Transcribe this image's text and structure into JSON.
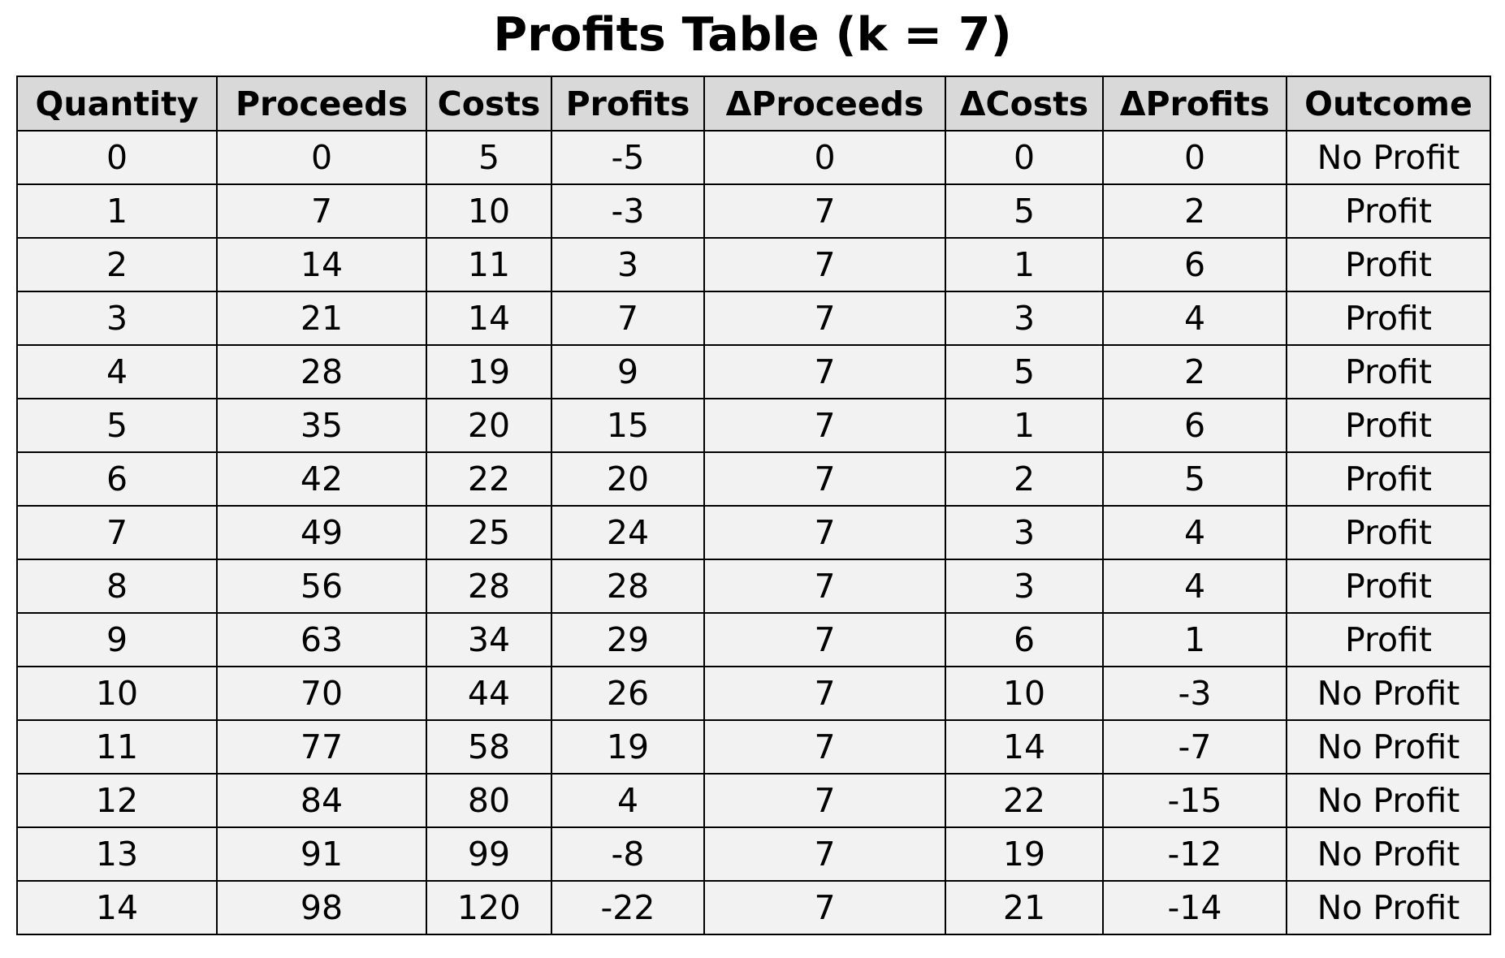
{
  "chart_data": {
    "type": "table",
    "title": "Profits Table (k = 7)",
    "columns": [
      "Quantity",
      "Proceeds",
      "Costs",
      "Profits",
      "ΔProceeds",
      "ΔCosts",
      "ΔProfits",
      "Outcome"
    ],
    "rows": [
      [
        "0",
        "0",
        "5",
        "-5",
        "0",
        "0",
        "0",
        "No Profit"
      ],
      [
        "1",
        "7",
        "10",
        "-3",
        "7",
        "5",
        "2",
        "Profit"
      ],
      [
        "2",
        "14",
        "11",
        "3",
        "7",
        "1",
        "6",
        "Profit"
      ],
      [
        "3",
        "21",
        "14",
        "7",
        "7",
        "3",
        "4",
        "Profit"
      ],
      [
        "4",
        "28",
        "19",
        "9",
        "7",
        "5",
        "2",
        "Profit"
      ],
      [
        "5",
        "35",
        "20",
        "15",
        "7",
        "1",
        "6",
        "Profit"
      ],
      [
        "6",
        "42",
        "22",
        "20",
        "7",
        "2",
        "5",
        "Profit"
      ],
      [
        "7",
        "49",
        "25",
        "24",
        "7",
        "3",
        "4",
        "Profit"
      ],
      [
        "8",
        "56",
        "28",
        "28",
        "7",
        "3",
        "4",
        "Profit"
      ],
      [
        "9",
        "63",
        "34",
        "29",
        "7",
        "6",
        "1",
        "Profit"
      ],
      [
        "10",
        "70",
        "44",
        "26",
        "7",
        "10",
        "-3",
        "No Profit"
      ],
      [
        "11",
        "77",
        "58",
        "19",
        "7",
        "14",
        "-7",
        "No Profit"
      ],
      [
        "12",
        "84",
        "80",
        "4",
        "7",
        "22",
        "-15",
        "No Profit"
      ],
      [
        "13",
        "91",
        "99",
        "-8",
        "7",
        "19",
        "-12",
        "No Profit"
      ],
      [
        "14",
        "98",
        "120",
        "-22",
        "7",
        "21",
        "-14",
        "No Profit"
      ]
    ],
    "header_color": "#d9d9d9",
    "cell_color": "#f2f2f2",
    "border_color": "#000000"
  }
}
